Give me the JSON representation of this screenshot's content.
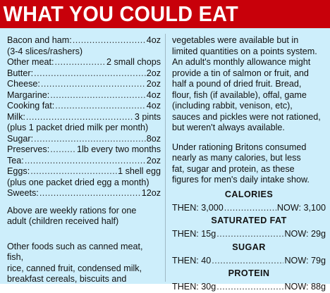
{
  "header": {
    "title": "WHAT YOU COULD EAT"
  },
  "rations": [
    {
      "item": "Bacon and ham:",
      "amount": "4oz",
      "note": "(3-4 slices/rashers)"
    },
    {
      "item": "Other meat:",
      "amount": "2 small chops"
    },
    {
      "item": "Butter:",
      "amount": "2oz"
    },
    {
      "item": "Cheese:",
      "amount": "2oz"
    },
    {
      "item": "Margarine:",
      "amount": "4oz"
    },
    {
      "item": "Cooking fat:",
      "amount": "4oz"
    },
    {
      "item": "Milk:",
      "amount": "3 pints",
      "note": "(plus 1 packet dried milk per month)"
    },
    {
      "item": "Sugar:",
      "amount": "8oz"
    },
    {
      "item": "Preserves:",
      "amount": "1lb every two months"
    },
    {
      "item": "Tea:",
      "amount": "2oz"
    },
    {
      "item": "Eggs:",
      "amount": "1 shell egg",
      "note": "(plus one packet dried egg a month)"
    },
    {
      "item": "Sweets:",
      "amount": "12oz"
    }
  ],
  "left_paragraphs": {
    "weekly": [
      "Above are weekly rations for one",
      "adult (children received half)"
    ],
    "other": [
      "Other foods such as canned meat, fish,",
      "rice, canned fruit, condensed milk,",
      "breakfast cereals, biscuits and"
    ]
  },
  "right_paragraphs": {
    "continued": [
      "vegetables were available but in",
      "limited quantities on a points system.",
      "An adult's monthly allowance might",
      "provide a tin of salmon or fruit, and",
      "half a pound of dried fruit. Bread,",
      "flour, fish (if available), offal, game",
      "(including rabbit, venison, etc),",
      "sauces and pickles were not rationed,",
      "but weren't always available."
    ],
    "comparison": [
      "Under rationing Britons consumed",
      "nearly as many calories, but less",
      "fat, sugar and protein, as these",
      "figures for men's daily intake show."
    ]
  },
  "stats": [
    {
      "heading": "CALORIES",
      "then": "THEN: 3,000",
      "now": "NOW: 3,100"
    },
    {
      "heading": "SATURATED FAT",
      "then": "THEN: 15g",
      "now": "NOW: 29g"
    },
    {
      "heading": "SUGAR",
      "then": "THEN: 40",
      "now": "NOW: 79g"
    },
    {
      "heading": "PROTEIN",
      "then": "THEN: 30g",
      "now": "NOW: 88g"
    }
  ]
}
